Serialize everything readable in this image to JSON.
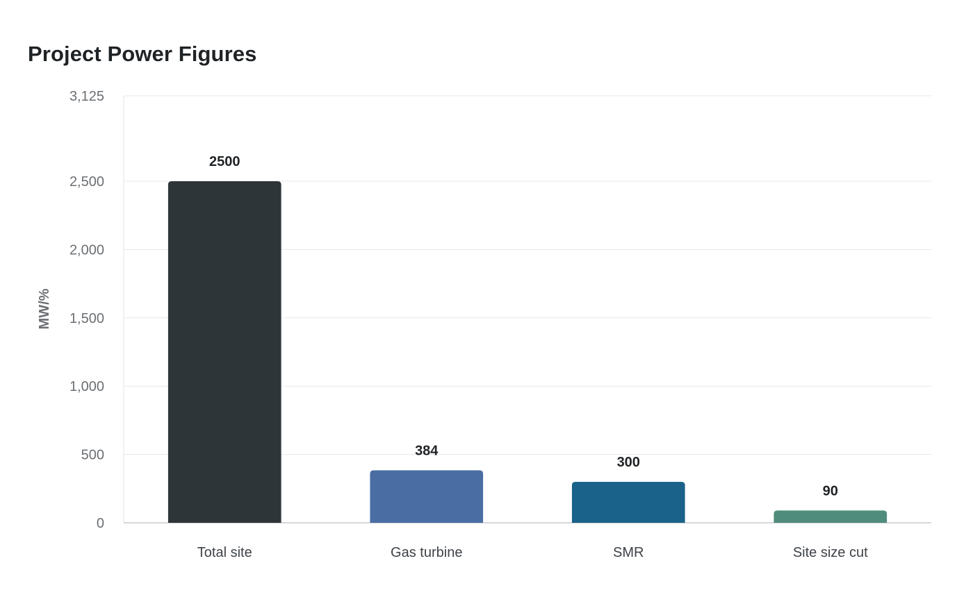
{
  "chart_data": {
    "type": "bar",
    "title": "Project Power Figures",
    "xlabel": "",
    "ylabel": "MW/%",
    "categories": [
      "Total site",
      "Gas turbine",
      "SMR",
      "Site size cut"
    ],
    "values": [
      2500,
      384,
      300,
      90
    ],
    "value_labels": [
      "2500",
      "384",
      "300",
      "90"
    ],
    "colors": [
      "#2e3538",
      "#4a6ea3",
      "#1a6289",
      "#4f8c7b"
    ],
    "ylim": [
      0,
      3125
    ],
    "yticks": [
      0,
      500,
      1000,
      1500,
      2000,
      2500,
      3125
    ],
    "ytick_labels": [
      "0",
      "500",
      "1,000",
      "1,500",
      "2,000",
      "2,500",
      "3,125"
    ],
    "grid": true,
    "legend": "none"
  }
}
